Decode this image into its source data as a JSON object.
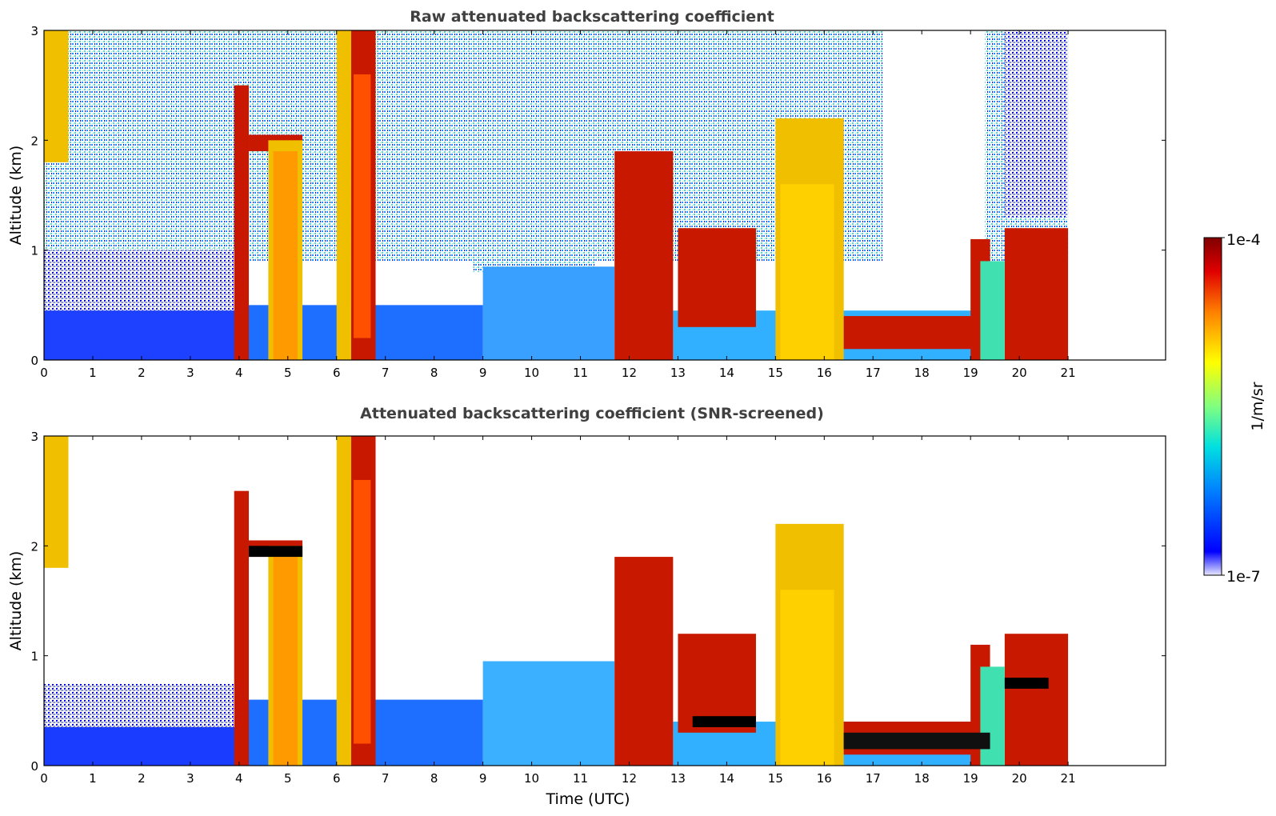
{
  "chart_data": [
    {
      "type": "heatmap",
      "title": "Raw attenuated backscattering coefficient",
      "xlabel": "",
      "ylabel": "Altitude (km)",
      "xlim": [
        0,
        23
      ],
      "ylim": [
        0,
        3
      ],
      "xticks": [
        "0",
        "1",
        "2",
        "3",
        "4",
        "5",
        "6",
        "7",
        "8",
        "9",
        "10",
        "11",
        "12",
        "13",
        "14",
        "15",
        "16",
        "17",
        "18",
        "19",
        "20",
        "21"
      ],
      "yticks": [
        "0",
        "1",
        "2",
        "3"
      ],
      "data_extent_hours": [
        0,
        21
      ],
      "features": [
        {
          "time": [
            0.0,
            0.5
          ],
          "alt": [
            1.8,
            3.0
          ],
          "level": "high"
        },
        {
          "time": [
            3.9,
            4.2
          ],
          "alt": [
            0.0,
            2.5
          ],
          "level": "very high"
        },
        {
          "time": [
            4.2,
            5.3
          ],
          "alt": [
            1.9,
            2.05
          ],
          "level": "very high"
        },
        {
          "time": [
            4.6,
            5.3
          ],
          "alt": [
            0.0,
            2.0
          ],
          "level": "high"
        },
        {
          "time": [
            6.0,
            6.3
          ],
          "alt": [
            0.0,
            3.0
          ],
          "level": "high"
        },
        {
          "time": [
            6.3,
            6.8
          ],
          "alt": [
            0.0,
            3.0
          ],
          "level": "very high"
        },
        {
          "time": [
            11.7,
            12.9
          ],
          "alt": [
            0.0,
            1.9
          ],
          "level": "very high"
        },
        {
          "time": [
            13.0,
            14.6
          ],
          "alt": [
            0.3,
            1.2
          ],
          "level": "very high"
        },
        {
          "time": [
            15.0,
            16.4
          ],
          "alt": [
            0.0,
            2.2
          ],
          "level": "high"
        },
        {
          "time": [
            16.4,
            19.4
          ],
          "alt": [
            0.1,
            0.4
          ],
          "level": "very high"
        },
        {
          "time": [
            19.0,
            19.4
          ],
          "alt": [
            0.0,
            1.1
          ],
          "level": "very high"
        },
        {
          "time": [
            19.7,
            21.0
          ],
          "alt": [
            0.0,
            1.2
          ],
          "level": "very high"
        }
      ]
    },
    {
      "type": "heatmap",
      "title": "Attenuated backscattering coefficient (SNR-screened)",
      "xlabel": "Time (UTC)",
      "ylabel": "Altitude (km)",
      "xlim": [
        0,
        23
      ],
      "ylim": [
        0,
        3
      ],
      "xticks": [
        "0",
        "1",
        "2",
        "3",
        "4",
        "5",
        "6",
        "7",
        "8",
        "9",
        "10",
        "11",
        "12",
        "13",
        "14",
        "15",
        "16",
        "17",
        "18",
        "19",
        "20",
        "21"
      ],
      "yticks": [
        "0",
        "1",
        "2",
        "3"
      ],
      "data_extent_hours": [
        0,
        21
      ]
    }
  ],
  "colorbar": {
    "label": "1/m/sr",
    "max_label": "1e-4",
    "min_label": "1e-7",
    "scale": "log",
    "range": [
      1e-07,
      0.0001
    ],
    "colormap": "jet",
    "colors": [
      "#e8e8ff",
      "#0000ff",
      "#0080ff",
      "#00e0e0",
      "#80ff80",
      "#ffff00",
      "#ff8000",
      "#e00000",
      "#800000"
    ]
  }
}
